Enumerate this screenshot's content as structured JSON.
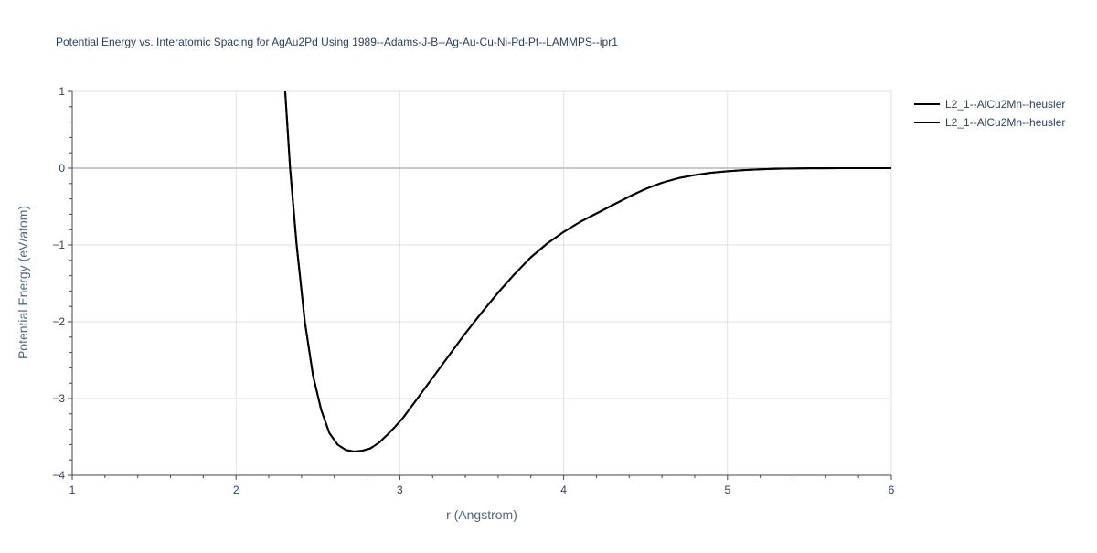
{
  "chart_data": {
    "type": "line",
    "title": "Potential Energy vs. Interatomic Spacing for AgAu2Pd Using 1989--Adams-J-B--Ag-Au-Cu-Ni-Pd-Pt--LAMMPS--ipr1",
    "xlabel": "r (Angstrom)",
    "ylabel": "Potential Energy (eV/atom)",
    "xlim": [
      1,
      6
    ],
    "ylim": [
      -4,
      1
    ],
    "x_ticks": [
      "1",
      "2",
      "3",
      "4",
      "5",
      "6"
    ],
    "y_ticks": [
      "1",
      "0",
      "−1",
      "−2",
      "−3",
      "−4"
    ],
    "grid": true,
    "legend_position": "top-right",
    "series": [
      {
        "name": "L2_1--AlCu2Mn--heusler",
        "color": "#000000",
        "x": [
          2.3,
          2.33,
          2.37,
          2.42,
          2.47,
          2.52,
          2.57,
          2.62,
          2.67,
          2.72,
          2.77,
          2.82,
          2.87,
          2.92,
          2.97,
          3.02,
          3.1,
          3.2,
          3.3,
          3.4,
          3.5,
          3.6,
          3.7,
          3.8,
          3.9,
          4.0,
          4.1,
          4.2,
          4.3,
          4.4,
          4.5,
          4.6,
          4.7,
          4.8,
          4.9,
          5.0,
          5.1,
          5.2,
          5.3,
          5.4,
          5.5,
          5.6,
          5.7,
          5.8,
          5.9,
          6.0
        ],
        "y": [
          1.0,
          0.0,
          -1.0,
          -2.0,
          -2.7,
          -3.15,
          -3.45,
          -3.6,
          -3.67,
          -3.69,
          -3.68,
          -3.65,
          -3.58,
          -3.48,
          -3.37,
          -3.25,
          -3.02,
          -2.73,
          -2.44,
          -2.15,
          -1.88,
          -1.62,
          -1.38,
          -1.16,
          -0.98,
          -0.83,
          -0.7,
          -0.59,
          -0.48,
          -0.37,
          -0.27,
          -0.19,
          -0.13,
          -0.09,
          -0.06,
          -0.04,
          -0.025,
          -0.015,
          -0.008,
          -0.004,
          -0.002,
          -0.001,
          -0.0005,
          -0.0002,
          -0.0001,
          0.0
        ]
      },
      {
        "name": "L2_1--AlCu2Mn--heusler",
        "color": "#000000",
        "x": [
          2.3,
          2.33,
          2.37,
          2.42,
          2.47,
          2.52,
          2.57,
          2.62,
          2.67,
          2.72,
          2.77,
          2.82,
          2.87,
          2.92,
          2.97,
          3.02,
          3.1,
          3.2,
          3.3,
          3.4,
          3.5,
          3.6,
          3.7,
          3.8,
          3.9,
          4.0,
          4.1,
          4.2,
          4.3,
          4.4,
          4.5,
          4.6,
          4.7,
          4.8,
          4.9,
          5.0,
          5.1,
          5.2,
          5.3,
          5.4,
          5.5,
          5.6,
          5.7,
          5.8,
          5.9,
          6.0
        ],
        "y": [
          1.0,
          0.0,
          -1.0,
          -2.0,
          -2.7,
          -3.15,
          -3.45,
          -3.6,
          -3.67,
          -3.69,
          -3.68,
          -3.65,
          -3.58,
          -3.48,
          -3.37,
          -3.25,
          -3.02,
          -2.73,
          -2.44,
          -2.15,
          -1.88,
          -1.62,
          -1.38,
          -1.16,
          -0.98,
          -0.83,
          -0.7,
          -0.59,
          -0.48,
          -0.37,
          -0.27,
          -0.19,
          -0.13,
          -0.09,
          -0.06,
          -0.04,
          -0.025,
          -0.015,
          -0.008,
          -0.004,
          -0.002,
          -0.001,
          -0.0005,
          -0.0002,
          -0.0001,
          0.0
        ]
      }
    ]
  }
}
